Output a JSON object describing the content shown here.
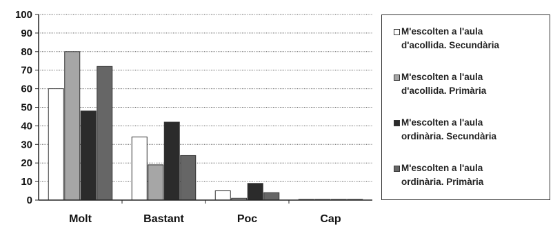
{
  "chart_data": {
    "type": "bar",
    "categories": [
      "Molt",
      "Bastant",
      "Poc",
      "Cap"
    ],
    "ylim": [
      0,
      100
    ],
    "yticks": [
      0,
      10,
      20,
      30,
      40,
      50,
      60,
      70,
      80,
      90,
      100
    ],
    "grid": true,
    "legend_position": "right",
    "series": [
      {
        "name": [
          "M'escolten a l'aula",
          "d'acollida. Secundària"
        ],
        "color": "#ffffff",
        "values": [
          60,
          34,
          5,
          0
        ]
      },
      {
        "name": [
          "M'escolten a l'aula",
          "d'acollida. Primària"
        ],
        "color": "#a6a6a6",
        "values": [
          80,
          19,
          1,
          0
        ]
      },
      {
        "name": [
          "M'escolten a l'aula",
          "ordinària. Secundària"
        ],
        "color": "#2b2b2b",
        "values": [
          48,
          42,
          9,
          0
        ]
      },
      {
        "name": [
          "M'escolten a l'aula",
          "ordinària. Primària"
        ],
        "color": "#666666",
        "values": [
          72,
          24,
          4,
          0
        ]
      }
    ]
  }
}
